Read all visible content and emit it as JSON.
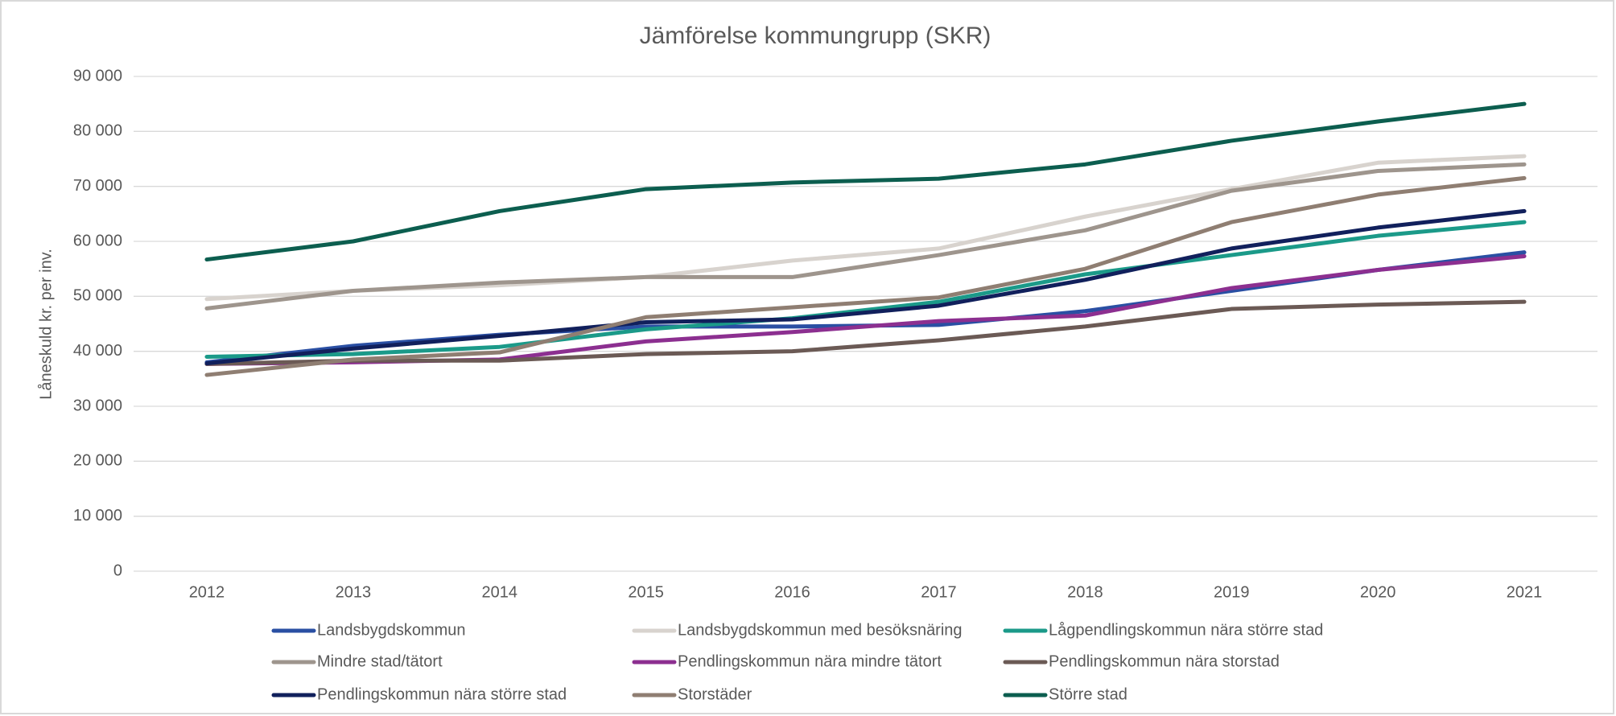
{
  "chart_data": {
    "type": "line",
    "title": "Jämförelse kommungrupp (SKR)",
    "y_label": "Låneskuld kr. per inv.",
    "categories": [
      "2012",
      "2013",
      "2014",
      "2015",
      "2016",
      "2017",
      "2018",
      "2019",
      "2020",
      "2021"
    ],
    "ylim": [
      0,
      90000
    ],
    "yticks": [
      0,
      {
        "value": 10000,
        "label": "10 000"
      },
      {
        "value": 20000,
        "label": "20 000"
      },
      {
        "value": 30000,
        "label": "30 000"
      },
      {
        "value": 40000,
        "label": "40 000"
      },
      {
        "value": 50000,
        "label": "50 000"
      },
      {
        "value": 60000,
        "label": "60 000"
      },
      {
        "value": 70000,
        "label": "70 000"
      },
      {
        "value": 80000,
        "label": "80 000"
      },
      {
        "value": 90000,
        "label": "90 000"
      }
    ],
    "grid": true,
    "legend": "bottom",
    "series": [
      {
        "name": "Landsbygdskommun",
        "color": "#2a4fa3",
        "values": [
          38000,
          41000,
          43000,
          44500,
          44500,
          44800,
          47300,
          51000,
          54800,
          58000
        ]
      },
      {
        "name": "Landsbygdskommun med besöksnäring",
        "color": "#d8d3ce",
        "values": [
          49500,
          51000,
          52000,
          53500,
          56500,
          58700,
          64500,
          69500,
          74300,
          75500
        ]
      },
      {
        "name": "Lågpendlingskommun nära större stad",
        "color": "#1b9a89",
        "values": [
          39000,
          39500,
          40800,
          44000,
          46000,
          49000,
          54000,
          57500,
          61000,
          63500
        ]
      },
      {
        "name": "Mindre stad/tätort",
        "color": "#9e958d",
        "values": [
          47800,
          51000,
          52500,
          53500,
          53500,
          57500,
          62000,
          69200,
          72800,
          74000
        ]
      },
      {
        "name": "Pendlingskommun nära mindre tätort",
        "color": "#8c2f90",
        "values": [
          37700,
          38000,
          38500,
          41800,
          43500,
          45500,
          46500,
          51500,
          54800,
          57300
        ]
      },
      {
        "name": "Pendlingskommun nära storstad",
        "color": "#6b5a55",
        "values": [
          37700,
          38300,
          38300,
          39500,
          40000,
          42000,
          44500,
          47700,
          48500,
          49000
        ]
      },
      {
        "name": "Pendlingskommun nära större stad",
        "color": "#11205c",
        "values": [
          37800,
          40500,
          42800,
          45300,
          45800,
          48300,
          53000,
          58700,
          62500,
          65500
        ]
      },
      {
        "name": "Storstäder",
        "color": "#8f7e72",
        "values": [
          35700,
          38500,
          39800,
          46200,
          48000,
          49800,
          55000,
          63500,
          68500,
          71500
        ]
      },
      {
        "name": "Större stad",
        "color": "#0c5e4f",
        "values": [
          56700,
          60000,
          65500,
          69500,
          70700,
          71400,
          74000,
          78300,
          81800,
          85000
        ]
      }
    ]
  }
}
